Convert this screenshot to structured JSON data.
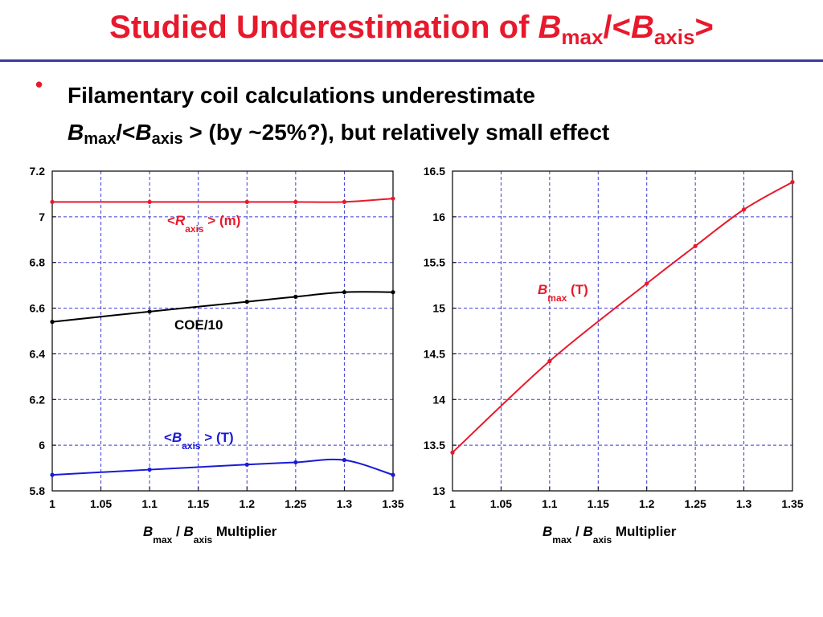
{
  "header": {
    "title_prefix": "Studied Underestimation of ",
    "title_b": "B",
    "title_sub_max": "max",
    "title_mid": "/<",
    "title_b2": "B",
    "title_sub_axis": "axis",
    "title_suffix": ">"
  },
  "bullet": {
    "marker": "•",
    "line1": "Filamentary coil calculations underestimate",
    "l2_b": "B",
    "l2_sub_max": "max",
    "l2_mid": "/<",
    "l2_b2": "B",
    "l2_sub_axis": "axis",
    "l2_rest": "> (by ~25%?), but relatively small effect"
  },
  "colors": {
    "accent": "#e8192c",
    "rule": "#3b3b9c",
    "grid": "#3b3bd6",
    "black_series": "#000000",
    "blue_series": "#1a1ad6",
    "red_series": "#e8192c"
  },
  "chart_data": [
    {
      "type": "line",
      "grid": true,
      "xlim": [
        1,
        1.35
      ],
      "ylim": [
        5.8,
        7.2
      ],
      "x_ticks": [
        "1",
        "1.05",
        "1.1",
        "1.15",
        "1.2",
        "1.25",
        "1.3",
        "1.35"
      ],
      "y_ticks": [
        "5.8",
        "6",
        "6.2",
        "6.4",
        "6.6",
        "6.8",
        "7",
        "7.2"
      ],
      "xlabel": {
        "b1": "B",
        "s1": "max",
        "slash": "/",
        "b2": "B",
        "s2": "axis",
        "rest": "Multiplier"
      },
      "series": [
        {
          "color": "#e8192c",
          "label": {
            "pre": "<",
            "b": "R",
            "sub": "axis",
            "post": "> (m)"
          },
          "x": [
            1.0,
            1.1,
            1.2,
            1.25,
            1.3,
            1.35
          ],
          "y": [
            7.065,
            7.065,
            7.065,
            7.065,
            7.065,
            7.08
          ]
        },
        {
          "color": "#000000",
          "label": {
            "pre": "",
            "b": "",
            "sub": "",
            "post": "COE/10"
          },
          "x": [
            1.0,
            1.1,
            1.2,
            1.25,
            1.3,
            1.35
          ],
          "y": [
            6.54,
            6.585,
            6.628,
            6.65,
            6.67,
            6.67
          ]
        },
        {
          "color": "#1a1ad6",
          "label": {
            "pre": "<",
            "b": "B",
            "sub": "axis",
            "post": "> (T)"
          },
          "x": [
            1.0,
            1.1,
            1.2,
            1.25,
            1.3,
            1.35
          ],
          "y": [
            5.87,
            5.893,
            5.915,
            5.925,
            5.935,
            5.87
          ]
        }
      ]
    },
    {
      "type": "line",
      "grid": true,
      "xlim": [
        1,
        1.35
      ],
      "ylim": [
        13,
        16.5
      ],
      "x_ticks": [
        "1",
        "1.05",
        "1.1",
        "1.15",
        "1.2",
        "1.25",
        "1.3",
        "1.35"
      ],
      "y_ticks": [
        "13",
        "13.5",
        "14",
        "14.5",
        "15",
        "15.5",
        "16",
        "16.5"
      ],
      "xlabel": {
        "b1": "B",
        "s1": "max",
        "slash": "/",
        "b2": "B",
        "s2": "axis",
        "rest": "Multiplier"
      },
      "series": [
        {
          "color": "#e8192c",
          "label": {
            "pre": "",
            "b": "B",
            "sub": "max",
            "post": "(T)"
          },
          "x": [
            1.0,
            1.1,
            1.2,
            1.25,
            1.3,
            1.35
          ],
          "y": [
            13.42,
            14.42,
            15.27,
            15.68,
            16.08,
            16.38
          ]
        }
      ]
    }
  ]
}
